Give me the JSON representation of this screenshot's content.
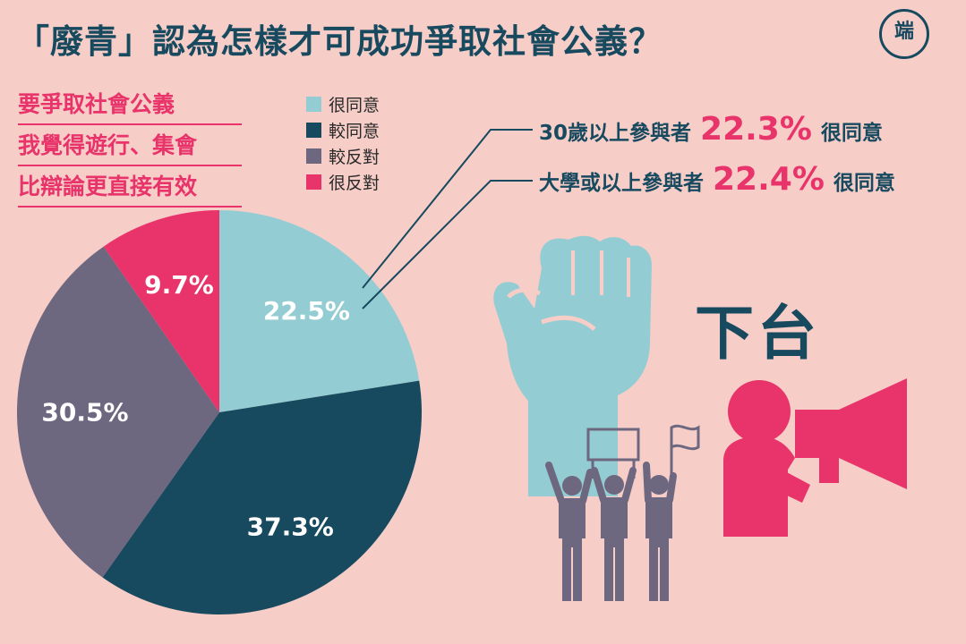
{
  "title": "「廢青」認為怎樣才可成功爭取社會公義？",
  "logo": {
    "text": "端",
    "icon": "initium-logo-icon"
  },
  "question": [
    "要爭取社會公義",
    "我覺得遊行、集會",
    "比辯論更直接有效"
  ],
  "chart_data": {
    "type": "pie",
    "categories": [
      "很同意",
      "較同意",
      "較反對",
      "很反對"
    ],
    "values": [
      22.5,
      37.3,
      30.5,
      9.7
    ],
    "value_labels": [
      "22.5%",
      "37.3%",
      "30.5%",
      "9.7%"
    ],
    "colors": [
      "#93cdd3",
      "#17495f",
      "#6e6780",
      "#e8346a"
    ],
    "legend": {
      "placement": "top-right",
      "entries": [
        "很同意",
        "較同意",
        "較反對",
        "很反對"
      ]
    },
    "start_angle": "12 o'clock",
    "direction": "clockwise"
  },
  "callouts": [
    {
      "group": "30歲以上參與者",
      "value_label": "22.3%",
      "value": 22.3,
      "category": "很同意"
    },
    {
      "group": "大學或以上參與者",
      "value_label": "22.4%",
      "value": 22.4,
      "category": "很同意"
    }
  ],
  "illustration": {
    "slogan": "下台",
    "icons": [
      "raised-fist-icon",
      "protesters-icon",
      "megaphone-speaker-icon"
    ],
    "colors": {
      "fist": "#93cdd3",
      "protesters": "#6e6780",
      "speaker": "#e8346a",
      "slogan": "#17495f"
    }
  }
}
